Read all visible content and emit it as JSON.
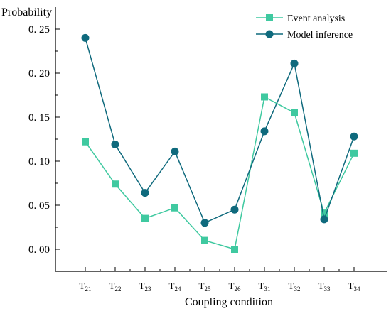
{
  "chart_data": {
    "type": "line",
    "title": "",
    "xlabel": "Coupling condition",
    "ylabel": "Probability",
    "ylim": [
      -0.025,
      0.275
    ],
    "yticks": [
      0.0,
      0.05,
      0.1,
      0.15,
      0.2,
      0.25
    ],
    "ytick_labels": [
      "0. 00",
      "0. 05",
      "0. 10",
      "0. 15",
      "0. 20",
      "0. 25"
    ],
    "categories": [
      {
        "base": "T",
        "sub": "21"
      },
      {
        "base": "T",
        "sub": "22"
      },
      {
        "base": "T",
        "sub": "23"
      },
      {
        "base": "T",
        "sub": "24"
      },
      {
        "base": "T",
        "sub": "25"
      },
      {
        "base": "T",
        "sub": "26"
      },
      {
        "base": "T",
        "sub": "31"
      },
      {
        "base": "T",
        "sub": "32"
      },
      {
        "base": "T",
        "sub": "33"
      },
      {
        "base": "T",
        "sub": "34"
      }
    ],
    "series": [
      {
        "name": "Event analysis",
        "marker": "square",
        "line_color": "#3fc9a0",
        "marker_color": "#3fc9a0",
        "values": [
          0.122,
          0.074,
          0.035,
          0.047,
          0.01,
          0.0,
          0.173,
          0.155,
          0.041,
          0.109
        ]
      },
      {
        "name": "Model inference",
        "marker": "circle",
        "line_color": "#0f6a7d",
        "marker_color": "#0f6a7d",
        "values": [
          0.24,
          0.119,
          0.064,
          0.111,
          0.03,
          0.045,
          0.134,
          0.211,
          0.034,
          0.128
        ]
      }
    ],
    "grid": false,
    "legend_position": "top-right"
  }
}
